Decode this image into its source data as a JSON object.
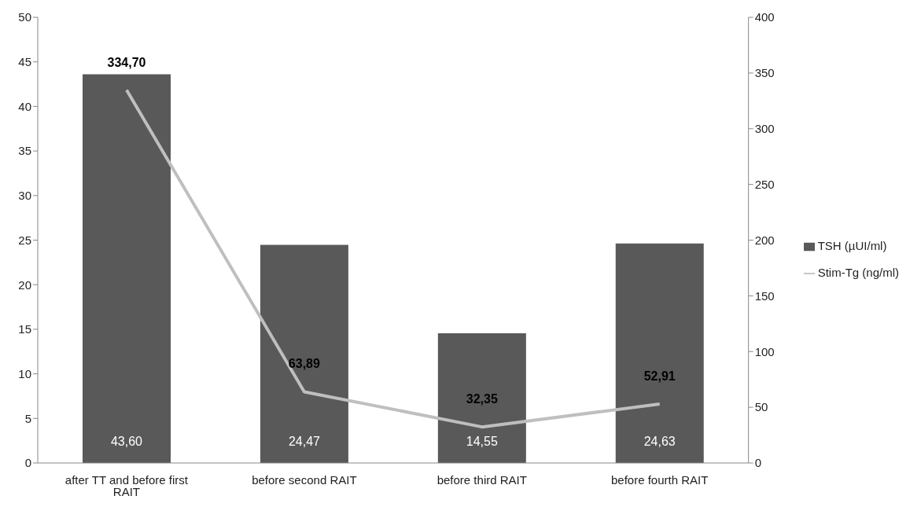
{
  "chart_data": {
    "type": "bar",
    "categories": [
      "after TT and before first RAIT",
      "before second RAIT",
      "before third RAIT",
      "before fourth RAIT"
    ],
    "series": [
      {
        "name": "TSH (µUI/ml)",
        "color": "#595959",
        "values": [
          43.6,
          24.47,
          14.55,
          24.63
        ],
        "value_labels": [
          "43,60",
          "24,47",
          "14,55",
          "24,63"
        ]
      },
      {
        "name": "Stim-Tg (ng/ml)",
        "type": "line",
        "axis": "y2",
        "color": "#bfbfbf",
        "values": [
          334.7,
          63.89,
          32.35,
          52.91
        ],
        "value_labels": [
          "334,70",
          "63,89",
          "32,35",
          "52,91"
        ]
      }
    ],
    "ylim": [
      0,
      50
    ],
    "yticks": [
      0,
      5,
      10,
      15,
      20,
      25,
      30,
      35,
      40,
      45,
      50
    ],
    "y2lim": [
      0,
      400
    ],
    "y2ticks": [
      0,
      50,
      100,
      150,
      200,
      250,
      300,
      350,
      400
    ],
    "grid": false,
    "legend": "right",
    "marker": "none",
    "line_style": "solid"
  }
}
